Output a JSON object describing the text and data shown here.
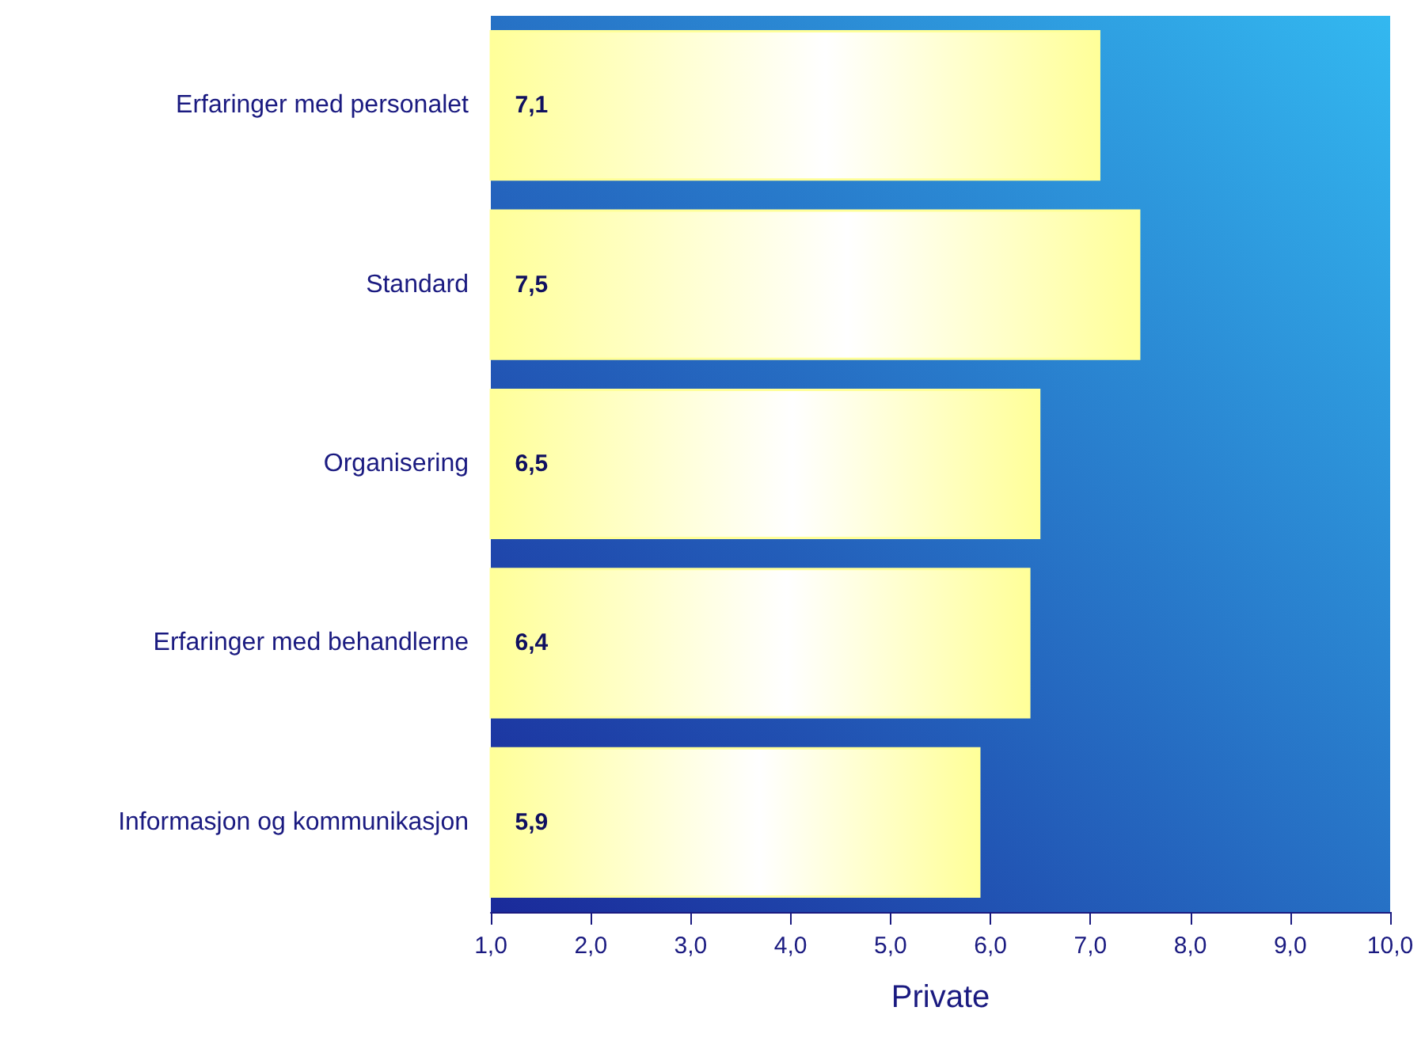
{
  "chart_data": {
    "type": "bar",
    "orientation": "horizontal",
    "xlabel": "Private",
    "categories": [
      "Erfaringer med personalet",
      "Standard",
      "Organisering",
      "Erfaringer med behandlerne",
      "Informasjon og kommunikasjon"
    ],
    "values": [
      7.1,
      7.5,
      6.5,
      6.4,
      5.9
    ],
    "value_labels": [
      "7,1",
      "7,5",
      "6,5",
      "6,4",
      "5,9"
    ],
    "color": "#ffff99",
    "xlim": [
      1,
      10
    ],
    "xticks": [
      {
        "value": 1,
        "label": "1,0"
      },
      {
        "value": 2,
        "label": "2,0"
      },
      {
        "value": 3,
        "label": "3,0"
      },
      {
        "value": 4,
        "label": "4,0"
      },
      {
        "value": 5,
        "label": "5,0"
      },
      {
        "value": 6,
        "label": "6,0"
      },
      {
        "value": 7,
        "label": "7,0"
      },
      {
        "value": 8,
        "label": "8,0"
      },
      {
        "value": 9,
        "label": "9,0"
      },
      {
        "value": 10,
        "label": "10,0"
      }
    ],
    "grid": false
  }
}
